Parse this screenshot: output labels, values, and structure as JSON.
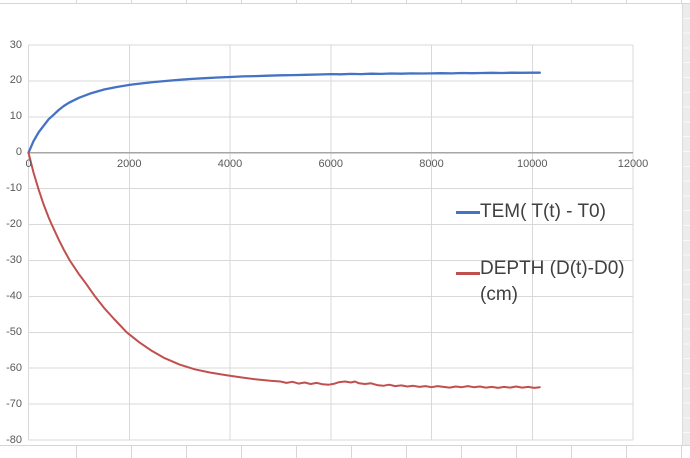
{
  "app": {
    "view": "spreadsheet with embedded line chart",
    "colors": {
      "series_blue": "#4472C4",
      "series_red": "#C0504D",
      "gridline": "#D9D9D9",
      "axis_line": "#A6A6A6",
      "tick_label": "#595959",
      "legend_text": "#404040",
      "sheet_gridline": "#D6D6D6",
      "sheet_right_band_fill": "#ECECEC"
    }
  },
  "chart_data": {
    "type": "line",
    "title": "",
    "xlabel": "",
    "ylabel": "",
    "grid": true,
    "legend_position": "inside-right",
    "x_axis": {
      "min": 0,
      "max": 12000,
      "tick_interval": 2000,
      "ticks": [
        0,
        2000,
        4000,
        6000,
        8000,
        10000,
        12000
      ]
    },
    "y_axis": {
      "min": -80,
      "max": 30,
      "tick_interval": 10,
      "ticks": [
        30,
        20,
        10,
        0,
        -10,
        -20,
        -30,
        -40,
        -50,
        -60,
        -70,
        -80
      ]
    },
    "series": [
      {
        "name": "TEM( T(t) - T0)",
        "color": "#4472C4",
        "points": [
          [
            0,
            0
          ],
          [
            100,
            3.2
          ],
          [
            200,
            5.7
          ],
          [
            300,
            7.5
          ],
          [
            400,
            9.3
          ],
          [
            500,
            10.6
          ],
          [
            600,
            11.9
          ],
          [
            700,
            13.0
          ],
          [
            800,
            13.9
          ],
          [
            1000,
            15.3
          ],
          [
            1250,
            16.6
          ],
          [
            1500,
            17.6
          ],
          [
            1750,
            18.3
          ],
          [
            2000,
            18.9
          ],
          [
            2250,
            19.3
          ],
          [
            2500,
            19.7
          ],
          [
            2750,
            20.0
          ],
          [
            3000,
            20.3
          ],
          [
            3250,
            20.55
          ],
          [
            3500,
            20.75
          ],
          [
            3750,
            20.95
          ],
          [
            4000,
            21.1
          ],
          [
            4250,
            21.25
          ],
          [
            4500,
            21.35
          ],
          [
            4750,
            21.45
          ],
          [
            5000,
            21.55
          ],
          [
            5250,
            21.62
          ],
          [
            5500,
            21.7
          ],
          [
            5750,
            21.78
          ],
          [
            6000,
            21.9
          ],
          [
            6200,
            21.85
          ],
          [
            6400,
            21.95
          ],
          [
            6600,
            21.9
          ],
          [
            6800,
            22.0
          ],
          [
            7000,
            21.95
          ],
          [
            7200,
            22.05
          ],
          [
            7400,
            22.0
          ],
          [
            7600,
            22.1
          ],
          [
            7800,
            22.05
          ],
          [
            8000,
            22.1
          ],
          [
            8200,
            22.15
          ],
          [
            8400,
            22.1
          ],
          [
            8600,
            22.2
          ],
          [
            8800,
            22.15
          ],
          [
            9000,
            22.2
          ],
          [
            9200,
            22.25
          ],
          [
            9400,
            22.2
          ],
          [
            9600,
            22.3
          ],
          [
            9800,
            22.25
          ],
          [
            10000,
            22.3
          ],
          [
            10150,
            22.3
          ]
        ]
      },
      {
        "name": "DEPTH (D(t)-D0) (cm)",
        "color": "#C0504D",
        "points": [
          [
            0,
            0
          ],
          [
            100,
            -5.5
          ],
          [
            200,
            -10.2
          ],
          [
            300,
            -14.4
          ],
          [
            400,
            -18.0
          ],
          [
            460,
            -20.0
          ],
          [
            600,
            -24.2
          ],
          [
            700,
            -27.0
          ],
          [
            820,
            -30.0
          ],
          [
            1000,
            -33.8
          ],
          [
            1150,
            -36.6
          ],
          [
            1320,
            -40.0
          ],
          [
            1500,
            -43.2
          ],
          [
            1700,
            -46.3
          ],
          [
            1950,
            -50.0
          ],
          [
            2200,
            -52.8
          ],
          [
            2450,
            -55.2
          ],
          [
            2700,
            -57.2
          ],
          [
            3000,
            -59.0
          ],
          [
            3300,
            -60.3
          ],
          [
            3600,
            -61.2
          ],
          [
            3900,
            -61.9
          ],
          [
            4200,
            -62.5
          ],
          [
            4500,
            -63.1
          ],
          [
            4800,
            -63.5
          ],
          [
            5000,
            -63.7
          ],
          [
            5120,
            -64.1
          ],
          [
            5240,
            -63.8
          ],
          [
            5360,
            -64.3
          ],
          [
            5480,
            -64.0
          ],
          [
            5600,
            -64.4
          ],
          [
            5720,
            -64.1
          ],
          [
            5840,
            -64.5
          ],
          [
            5960,
            -64.6
          ],
          [
            6080,
            -64.3
          ],
          [
            6160,
            -63.9
          ],
          [
            6280,
            -63.7
          ],
          [
            6400,
            -64.0
          ],
          [
            6480,
            -63.7
          ],
          [
            6560,
            -64.2
          ],
          [
            6680,
            -64.4
          ],
          [
            6800,
            -64.2
          ],
          [
            6920,
            -64.7
          ],
          [
            7040,
            -64.9
          ],
          [
            7160,
            -64.6
          ],
          [
            7280,
            -65.0
          ],
          [
            7400,
            -64.8
          ],
          [
            7520,
            -65.1
          ],
          [
            7640,
            -64.9
          ],
          [
            7760,
            -65.2
          ],
          [
            7880,
            -65.0
          ],
          [
            8000,
            -65.3
          ],
          [
            8120,
            -65.0
          ],
          [
            8240,
            -65.2
          ],
          [
            8360,
            -65.4
          ],
          [
            8480,
            -65.1
          ],
          [
            8600,
            -65.3
          ],
          [
            8720,
            -65.0
          ],
          [
            8840,
            -65.3
          ],
          [
            8960,
            -65.1
          ],
          [
            9080,
            -65.4
          ],
          [
            9200,
            -65.2
          ],
          [
            9320,
            -65.5
          ],
          [
            9440,
            -65.2
          ],
          [
            9560,
            -65.4
          ],
          [
            9680,
            -65.1
          ],
          [
            9800,
            -65.4
          ],
          [
            9920,
            -65.2
          ],
          [
            10040,
            -65.5
          ],
          [
            10150,
            -65.3
          ]
        ]
      }
    ]
  },
  "legend": {
    "entries": [
      {
        "label": "TEM( T(t) - T0)"
      },
      {
        "label": "DEPTH (D(t)-D0) (cm)"
      }
    ]
  }
}
